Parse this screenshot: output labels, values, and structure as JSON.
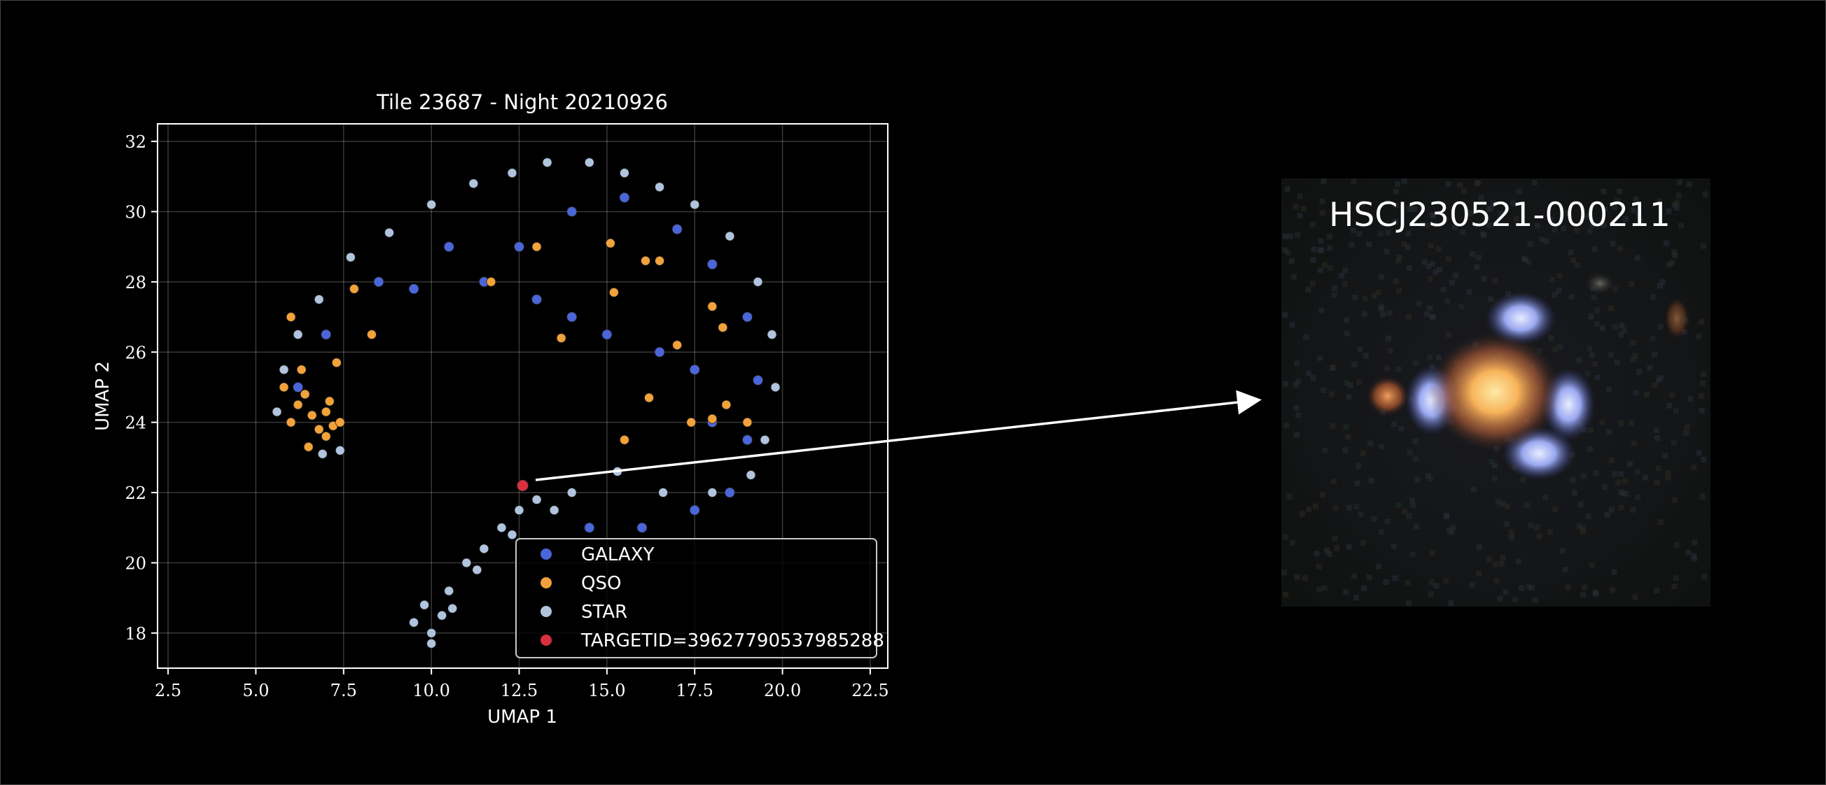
{
  "chart_data": {
    "type": "scatter",
    "title": "Tile 23687 - Night 20210926",
    "xlabel": "UMAP 1",
    "ylabel": "UMAP 2",
    "xlim": [
      2.2,
      23.0
    ],
    "ylim": [
      17.0,
      32.5
    ],
    "xticks": [
      2.5,
      5.0,
      7.5,
      10.0,
      12.5,
      15.0,
      17.5,
      20.0,
      22.5
    ],
    "xtick_labels": [
      "2.5",
      "5.0",
      "7.5",
      "10.0",
      "12.5",
      "15.0",
      "17.5",
      "20.0",
      "22.5"
    ],
    "yticks": [
      18,
      20,
      22,
      24,
      26,
      28,
      30,
      32
    ],
    "ytick_labels": [
      "18",
      "20",
      "22",
      "24",
      "26",
      "28",
      "30",
      "32"
    ],
    "grid": true,
    "legend_position": "lower-right",
    "series": [
      {
        "name": "GALAXY",
        "color": "#4a66d8",
        "values": [
          [
            12.5,
            29.0
          ],
          [
            14.0,
            30.0
          ],
          [
            15.5,
            30.4
          ],
          [
            17.0,
            29.5
          ],
          [
            18.0,
            28.5
          ],
          [
            19.0,
            27.0
          ],
          [
            19.3,
            25.2
          ],
          [
            19.0,
            23.5
          ],
          [
            18.5,
            22.0
          ],
          [
            17.5,
            21.5
          ],
          [
            16.0,
            21.0
          ],
          [
            14.5,
            21.0
          ],
          [
            9.5,
            27.8
          ],
          [
            8.5,
            28.0
          ],
          [
            7.0,
            26.5
          ],
          [
            6.2,
            25.0
          ],
          [
            16.5,
            26.0
          ],
          [
            17.5,
            25.5
          ],
          [
            18.0,
            24.0
          ],
          [
            15.0,
            26.5
          ],
          [
            14.0,
            27.0
          ],
          [
            13.0,
            27.5
          ],
          [
            11.5,
            28.0
          ],
          [
            10.5,
            29.0
          ]
        ]
      },
      {
        "name": "QSO",
        "color": "#f2a23a",
        "values": [
          [
            6.0,
            27.0
          ],
          [
            6.3,
            25.5
          ],
          [
            5.8,
            25.0
          ],
          [
            6.2,
            24.5
          ],
          [
            6.6,
            24.2
          ],
          [
            7.0,
            24.3
          ],
          [
            7.2,
            23.9
          ],
          [
            6.8,
            23.8
          ],
          [
            7.4,
            24.0
          ],
          [
            7.0,
            23.6
          ],
          [
            6.5,
            23.3
          ],
          [
            7.3,
            25.7
          ],
          [
            6.0,
            24.0
          ],
          [
            7.1,
            24.6
          ],
          [
            6.4,
            24.8
          ],
          [
            7.8,
            27.8
          ],
          [
            8.3,
            26.5
          ],
          [
            11.7,
            28.0
          ],
          [
            13.0,
            29.0
          ],
          [
            13.7,
            26.4
          ],
          [
            15.1,
            29.1
          ],
          [
            15.2,
            27.7
          ],
          [
            16.1,
            28.6
          ],
          [
            16.5,
            28.6
          ],
          [
            17.0,
            26.2
          ],
          [
            16.2,
            24.7
          ],
          [
            17.4,
            24.0
          ],
          [
            18.0,
            24.1
          ],
          [
            18.4,
            24.5
          ],
          [
            18.0,
            27.3
          ],
          [
            18.3,
            26.7
          ],
          [
            19.0,
            24.0
          ],
          [
            15.5,
            23.5
          ]
        ]
      },
      {
        "name": "STAR",
        "color": "#b0c4de",
        "values": [
          [
            9.5,
            18.3
          ],
          [
            10.0,
            18.0
          ],
          [
            10.3,
            18.5
          ],
          [
            10.0,
            17.7
          ],
          [
            10.5,
            19.2
          ],
          [
            11.0,
            20.0
          ],
          [
            11.5,
            20.4
          ],
          [
            12.0,
            21.0
          ],
          [
            12.5,
            21.5
          ],
          [
            13.0,
            21.8
          ],
          [
            10.6,
            18.7
          ],
          [
            9.8,
            18.8
          ],
          [
            11.3,
            19.8
          ],
          [
            12.3,
            20.8
          ],
          [
            13.5,
            21.5
          ],
          [
            14.0,
            22.0
          ],
          [
            5.6,
            24.3
          ],
          [
            5.8,
            25.5
          ],
          [
            6.2,
            26.5
          ],
          [
            6.8,
            27.5
          ],
          [
            7.7,
            28.7
          ],
          [
            8.8,
            29.4
          ],
          [
            10.0,
            30.2
          ],
          [
            11.2,
            30.8
          ],
          [
            12.3,
            31.1
          ],
          [
            13.3,
            31.4
          ],
          [
            14.5,
            31.4
          ],
          [
            15.5,
            31.1
          ],
          [
            16.5,
            30.7
          ],
          [
            17.5,
            30.2
          ],
          [
            18.5,
            29.3
          ],
          [
            19.3,
            28.0
          ],
          [
            19.7,
            26.5
          ],
          [
            19.8,
            25.0
          ],
          [
            19.5,
            23.5
          ],
          [
            19.1,
            22.5
          ],
          [
            15.3,
            22.6
          ],
          [
            16.6,
            22.0
          ],
          [
            18.0,
            22.0
          ],
          [
            6.9,
            23.1
          ],
          [
            7.4,
            23.2
          ]
        ]
      },
      {
        "name": "TARGETID=39627790537985288",
        "color": "#d93040",
        "values": [
          [
            12.6,
            22.2
          ]
        ]
      }
    ]
  },
  "inset": {
    "label": "HSCJ230521-000211"
  }
}
